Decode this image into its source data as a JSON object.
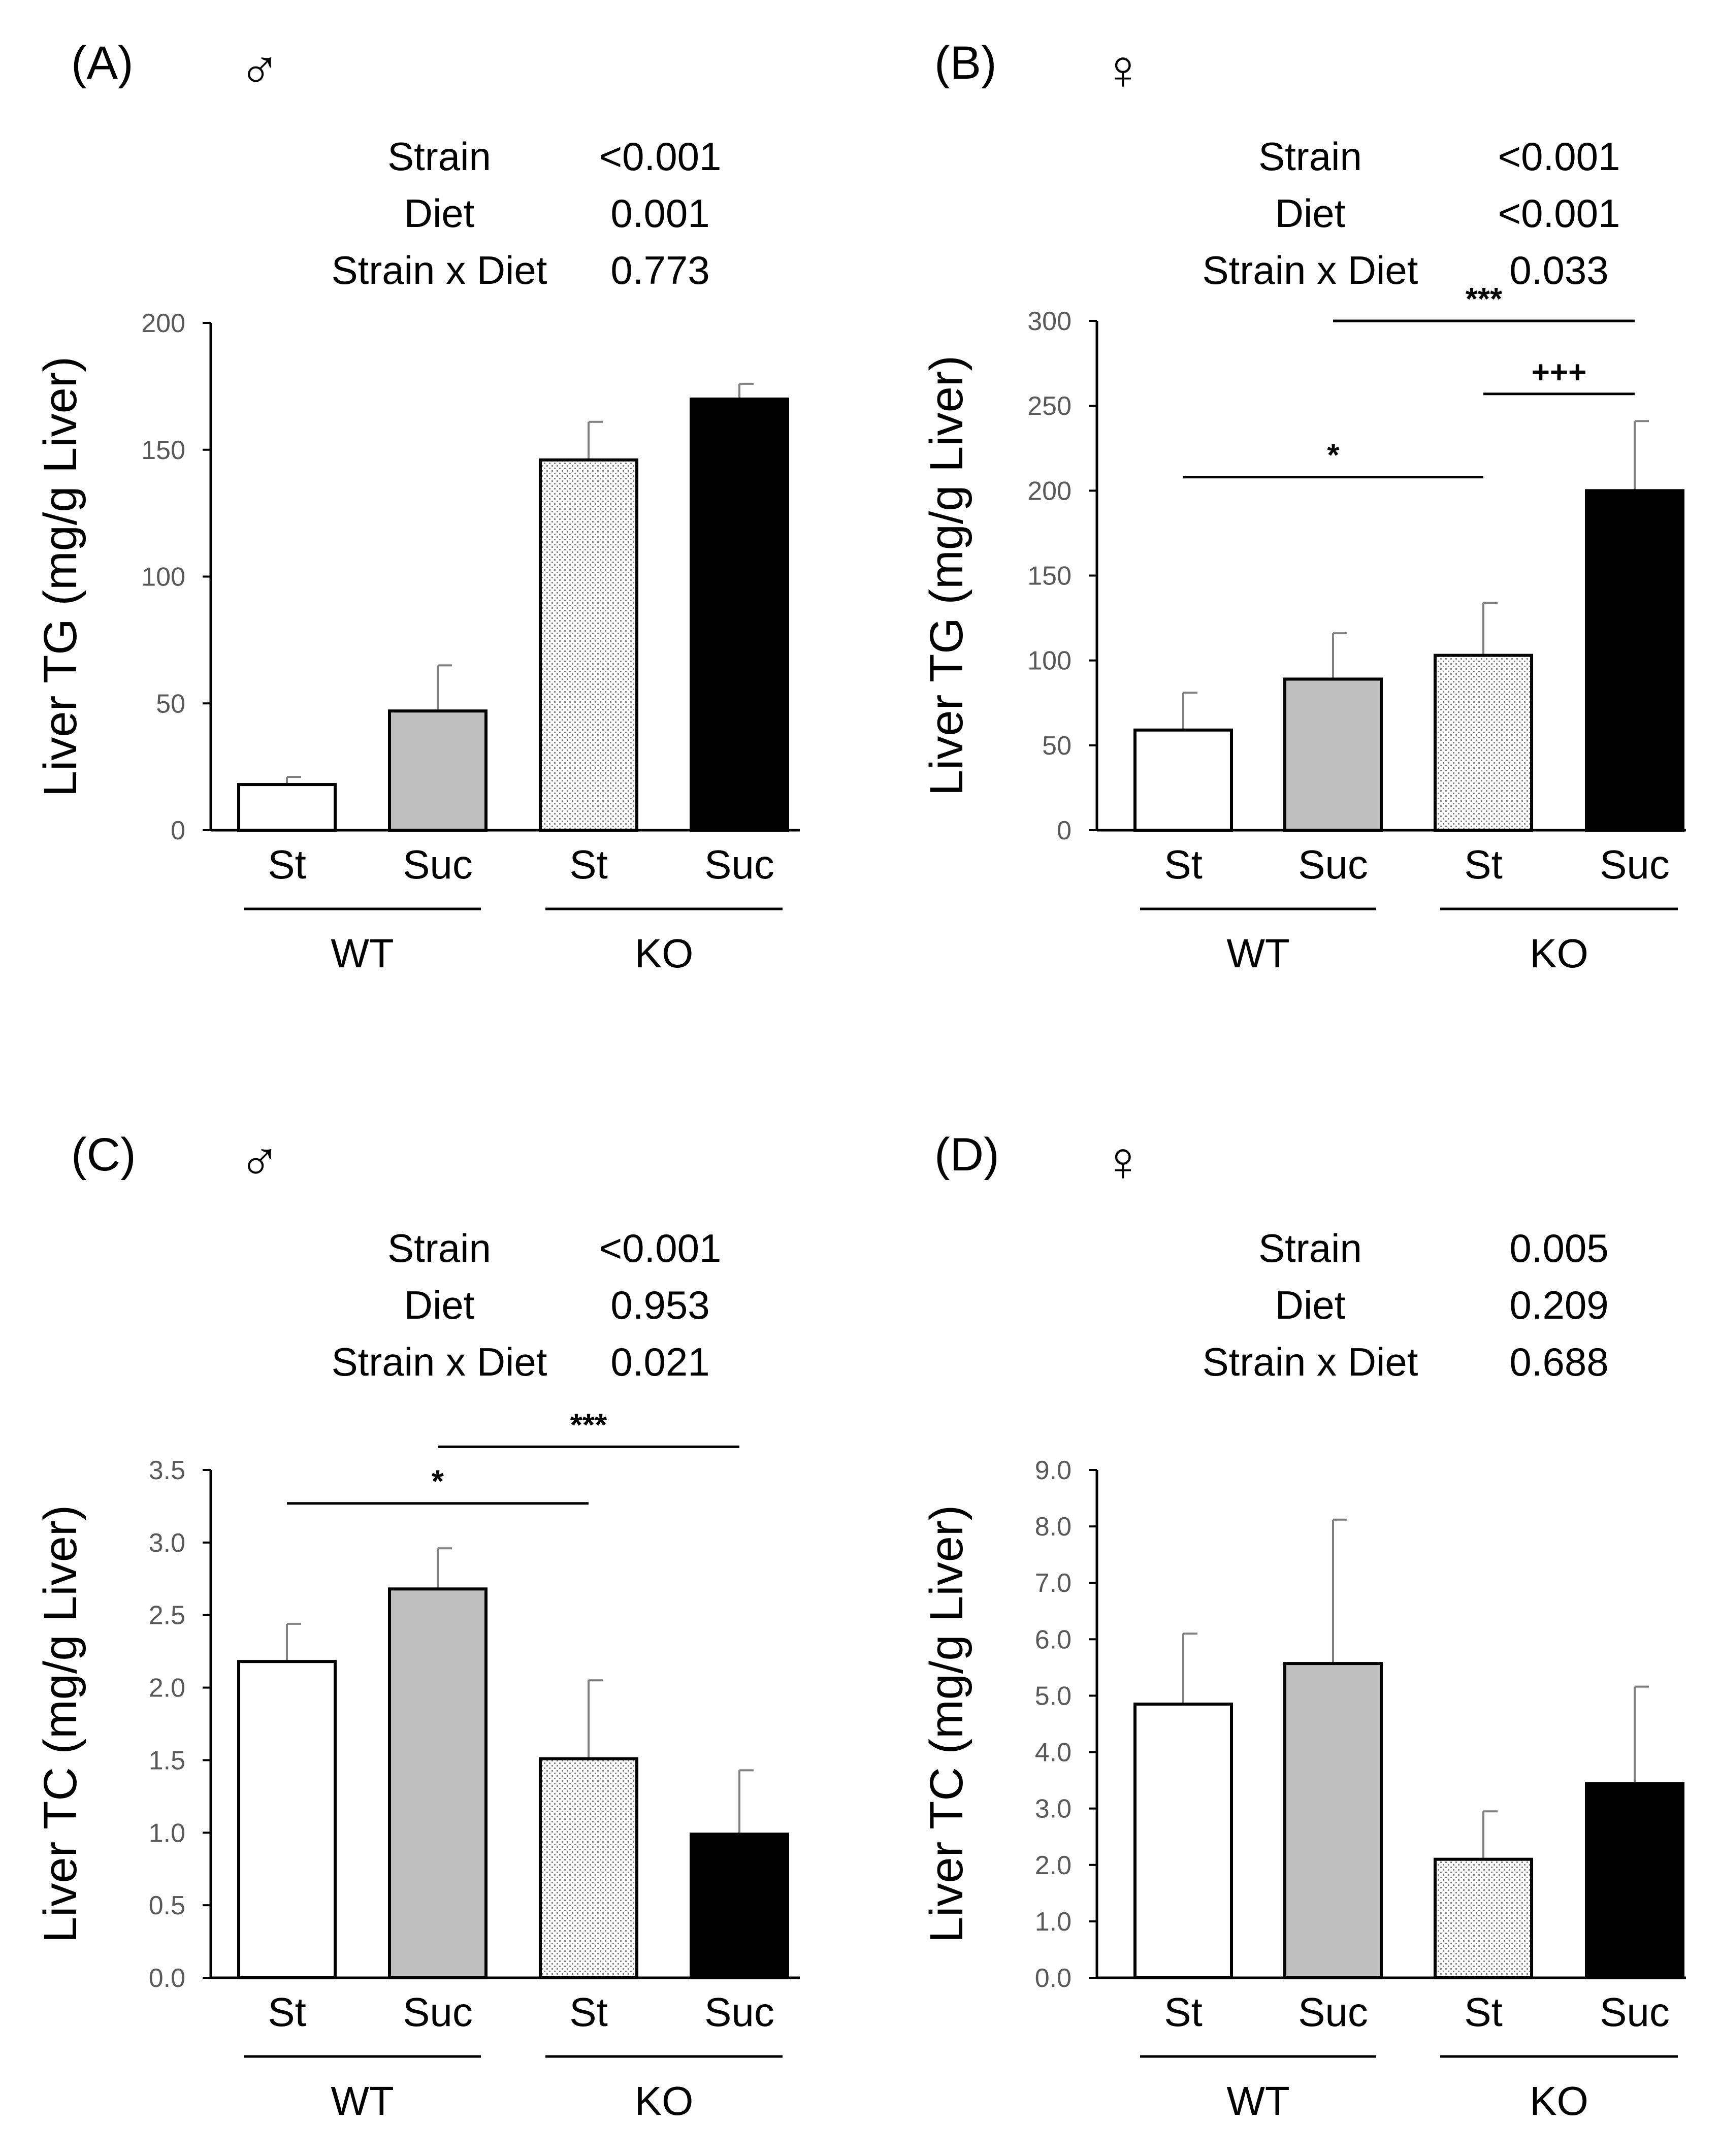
{
  "colors": {
    "wt_st": "#ffffff",
    "wt_suc": "#bfbfbf",
    "ko_st_pattern": "dotted",
    "ko_suc": "#000000",
    "axis": "#000000",
    "error_bar": "#808080",
    "tick_label": "#595959"
  },
  "chart_data": [
    {
      "id": "A",
      "type": "bar",
      "panel_label": "(A)",
      "sex_symbol": "♂",
      "ylabel": "Liver TG (mg/g Liver)",
      "ylim": [
        0,
        200
      ],
      "yticks": [
        "0",
        "50",
        "100",
        "150",
        "200"
      ],
      "categories": [
        "St",
        "Suc",
        "St",
        "Suc"
      ],
      "groups": [
        {
          "label": "WT",
          "members": [
            0,
            1
          ]
        },
        {
          "label": "KO",
          "members": [
            2,
            3
          ]
        }
      ],
      "values": [
        18,
        47,
        146,
        170
      ],
      "errors": [
        3,
        18,
        15,
        6
      ],
      "stats": [
        {
          "label": "Strain",
          "value": "<0.001"
        },
        {
          "label": "Diet",
          "value": "0.001"
        },
        {
          "label": "Strain x Diet",
          "value": "0.773"
        }
      ],
      "significance": []
    },
    {
      "id": "B",
      "type": "bar",
      "panel_label": "(B)",
      "sex_symbol": "♀",
      "ylabel": "Liver TG (mg/g Liver)",
      "ylim": [
        0,
        300
      ],
      "yticks": [
        "0",
        "50",
        "100",
        "150",
        "200",
        "250",
        "300"
      ],
      "categories": [
        "St",
        "Suc",
        "St",
        "Suc"
      ],
      "groups": [
        {
          "label": "WT",
          "members": [
            0,
            1
          ]
        },
        {
          "label": "KO",
          "members": [
            2,
            3
          ]
        }
      ],
      "values": [
        59,
        89,
        103,
        200
      ],
      "errors": [
        22,
        27,
        31,
        41
      ],
      "stats": [
        {
          "label": "Strain",
          "value": "<0.001"
        },
        {
          "label": "Diet",
          "value": "<0.001"
        },
        {
          "label": "Strain x Diet",
          "value": "0.033"
        }
      ],
      "significance": [
        {
          "from": 1,
          "to": 3,
          "label": "***",
          "level": 300
        },
        {
          "from": 2,
          "to": 3,
          "label": "+++",
          "level": 257
        },
        {
          "from": 0,
          "to": 2,
          "label": "*",
          "level": 208
        }
      ]
    },
    {
      "id": "C",
      "type": "bar",
      "panel_label": "(C)",
      "sex_symbol": "♂",
      "ylabel": "Liver TC (mg/g Liver)",
      "ylim": [
        0,
        3.5
      ],
      "yticks": [
        "0.0",
        "0.5",
        "1.0",
        "1.5",
        "2.0",
        "2.5",
        "3.0",
        "3.5"
      ],
      "categories": [
        "St",
        "Suc",
        "St",
        "Suc"
      ],
      "groups": [
        {
          "label": "WT",
          "members": [
            0,
            1
          ]
        },
        {
          "label": "KO",
          "members": [
            2,
            3
          ]
        }
      ],
      "values": [
        2.18,
        2.68,
        1.51,
        0.99
      ],
      "errors": [
        0.26,
        0.28,
        0.54,
        0.44
      ],
      "stats": [
        {
          "label": "Strain",
          "value": "<0.001"
        },
        {
          "label": "Diet",
          "value": "0.953"
        },
        {
          "label": "Strain x Diet",
          "value": "0.021"
        }
      ],
      "significance": [
        {
          "from": 1,
          "to": 3,
          "label": "***",
          "level": 3.66
        },
        {
          "from": 0,
          "to": 2,
          "label": "*",
          "level": 3.27
        }
      ]
    },
    {
      "id": "D",
      "type": "bar",
      "panel_label": "(D)",
      "sex_symbol": "♀",
      "ylabel": "Liver TC (mg/g Liver)",
      "ylim": [
        0,
        9
      ],
      "yticks": [
        "0.0",
        "1.0",
        "2.0",
        "3.0",
        "4.0",
        "5.0",
        "6.0",
        "7.0",
        "8.0",
        "9.0"
      ],
      "categories": [
        "St",
        "Suc",
        "St",
        "Suc"
      ],
      "groups": [
        {
          "label": "WT",
          "members": [
            0,
            1
          ]
        },
        {
          "label": "KO",
          "members": [
            2,
            3
          ]
        }
      ],
      "values": [
        4.85,
        5.57,
        2.1,
        3.44
      ],
      "errors": [
        1.25,
        2.55,
        0.85,
        1.72
      ],
      "stats": [
        {
          "label": "Strain",
          "value": "0.005"
        },
        {
          "label": "Diet",
          "value": "0.209"
        },
        {
          "label": "Strain x Diet",
          "value": "0.688"
        }
      ],
      "significance": []
    }
  ]
}
